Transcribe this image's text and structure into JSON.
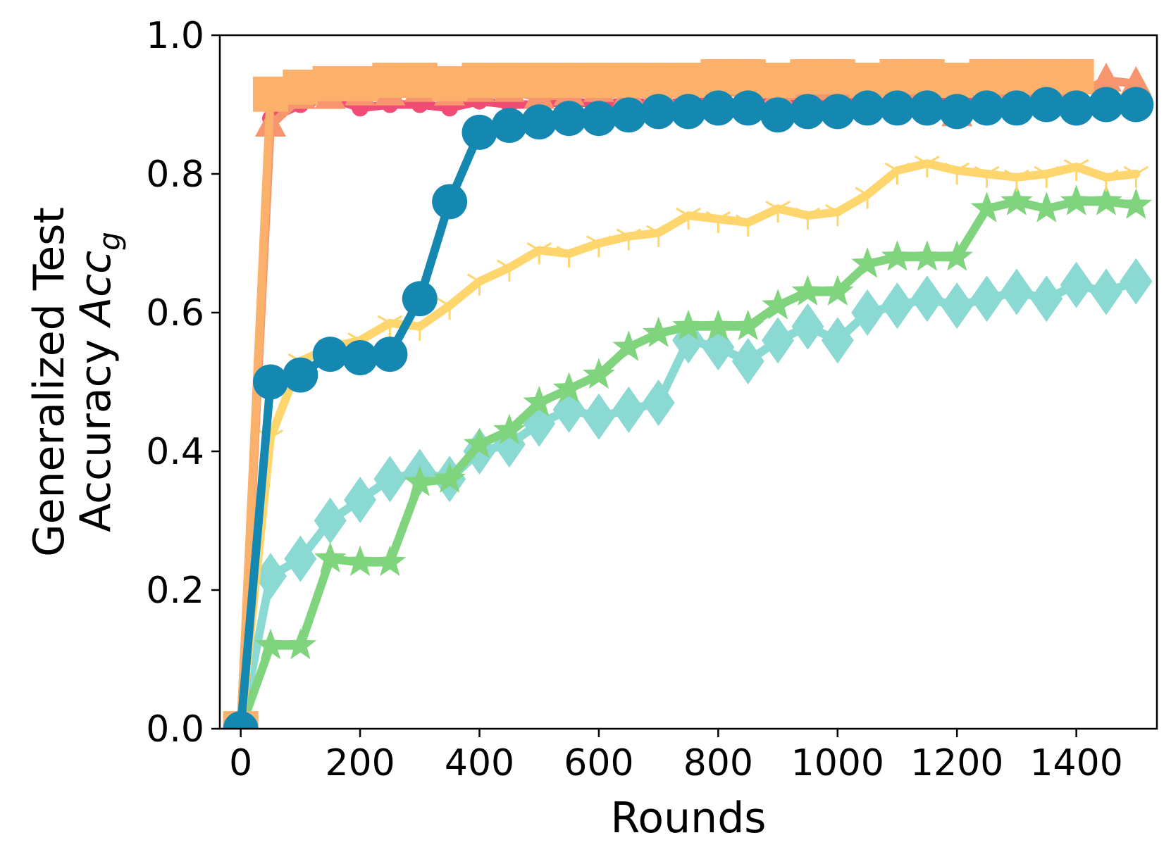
{
  "chart_data": {
    "type": "line",
    "title": "",
    "xlabel": "Rounds",
    "ylabel_line1": "Generalized Test",
    "ylabel_line2_prefix": "Accuracy ",
    "ylabel_line2_math": "Acc",
    "ylabel_line2_sub": "g",
    "xlim": [
      -35,
      1535
    ],
    "ylim": [
      0.0,
      1.0
    ],
    "xticks": [
      0,
      200,
      400,
      600,
      800,
      1000,
      1200,
      1400
    ],
    "xtick_labels": [
      "0",
      "200",
      "400",
      "600",
      "800",
      "1000",
      "1200",
      "1400"
    ],
    "yticks": [
      0.0,
      0.2,
      0.4,
      0.6,
      0.8,
      1.0
    ],
    "ytick_labels": [
      "0.0",
      "0.2",
      "0.4",
      "0.6",
      "0.8",
      "1.0"
    ],
    "grid": false,
    "series": [
      {
        "color": "#8AD9D2",
        "marker": "diamond",
        "x": [
          0,
          50,
          100,
          150,
          200,
          250,
          300,
          350,
          400,
          450,
          500,
          550,
          600,
          650,
          700,
          750,
          800,
          850,
          900,
          950,
          1000,
          1050,
          1100,
          1150,
          1200,
          1250,
          1300,
          1350,
          1400,
          1450,
          1500
        ],
        "values": [
          0.0,
          0.22,
          0.245,
          0.3,
          0.33,
          0.36,
          0.37,
          0.36,
          0.4,
          0.41,
          0.44,
          0.46,
          0.45,
          0.46,
          0.47,
          0.56,
          0.55,
          0.53,
          0.56,
          0.58,
          0.56,
          0.6,
          0.61,
          0.62,
          0.61,
          0.62,
          0.63,
          0.62,
          0.64,
          0.63,
          0.645
        ]
      },
      {
        "color": "#80D47E",
        "marker": "star",
        "x": [
          0,
          50,
          100,
          150,
          200,
          250,
          300,
          350,
          400,
          450,
          500,
          550,
          600,
          650,
          700,
          750,
          800,
          850,
          900,
          950,
          1000,
          1050,
          1100,
          1150,
          1200,
          1250,
          1300,
          1350,
          1400,
          1450,
          1500
        ],
        "values": [
          0.0,
          0.12,
          0.12,
          0.245,
          0.24,
          0.24,
          0.355,
          0.36,
          0.41,
          0.43,
          0.47,
          0.49,
          0.51,
          0.55,
          0.57,
          0.58,
          0.58,
          0.58,
          0.61,
          0.63,
          0.63,
          0.67,
          0.68,
          0.68,
          0.68,
          0.75,
          0.76,
          0.75,
          0.76,
          0.76,
          0.755
        ]
      },
      {
        "color": "#FFD56E",
        "marker": "tri_down",
        "x": [
          0,
          50,
          100,
          150,
          200,
          250,
          300,
          350,
          400,
          450,
          500,
          550,
          600,
          650,
          700,
          750,
          800,
          850,
          900,
          950,
          1000,
          1050,
          1100,
          1150,
          1200,
          1250,
          1300,
          1350,
          1400,
          1450,
          1500
        ],
        "values": [
          0.0,
          0.42,
          0.53,
          0.55,
          0.56,
          0.585,
          0.58,
          0.61,
          0.645,
          0.665,
          0.69,
          0.685,
          0.7,
          0.71,
          0.715,
          0.74,
          0.735,
          0.73,
          0.75,
          0.74,
          0.745,
          0.77,
          0.805,
          0.815,
          0.805,
          0.8,
          0.795,
          0.8,
          0.81,
          0.795,
          0.8
        ]
      },
      {
        "color": "#F04C75",
        "marker": "circle_small",
        "x": [
          0,
          50,
          100,
          150,
          200,
          250,
          300,
          350,
          400,
          450,
          500,
          550,
          600,
          650,
          700,
          750,
          800,
          850,
          900,
          950,
          1000,
          1050,
          1100,
          1150,
          1200,
          1250,
          1300,
          1350,
          1400,
          1450,
          1500
        ],
        "values": [
          0.0,
          0.88,
          0.9,
          0.91,
          0.895,
          0.9,
          0.9,
          0.895,
          0.905,
          0.9,
          0.9,
          0.905,
          0.9,
          0.905,
          0.9,
          0.905,
          0.905,
          0.9,
          0.905,
          0.9,
          0.905,
          0.905,
          0.9,
          0.91,
          0.905,
          0.905,
          0.9,
          0.905,
          0.895,
          0.9,
          0.905
        ]
      },
      {
        "color": "#F7956E",
        "marker": "triangle_up",
        "x": [
          0,
          50,
          100,
          150,
          200,
          250,
          300,
          350,
          400,
          450,
          500,
          550,
          600,
          650,
          700,
          750,
          800,
          850,
          900,
          950,
          1000,
          1050,
          1100,
          1150,
          1200,
          1250,
          1300,
          1350,
          1400,
          1450,
          1500
        ],
        "values": [
          0.0,
          0.87,
          0.91,
          0.91,
          0.915,
          0.915,
          0.92,
          0.915,
          0.92,
          0.92,
          0.91,
          0.915,
          0.92,
          0.915,
          0.92,
          0.915,
          0.92,
          0.915,
          0.915,
          0.91,
          0.915,
          0.915,
          0.91,
          0.91,
          0.885,
          0.91,
          0.915,
          0.92,
          0.915,
          0.935,
          0.93
        ]
      },
      {
        "color": "#FBB06B",
        "marker": "square",
        "x": [
          0,
          50,
          100,
          150,
          200,
          250,
          300,
          350,
          400,
          450,
          500,
          550,
          600,
          650,
          700,
          750,
          800,
          850,
          900,
          950,
          1000,
          1050,
          1100,
          1150,
          1200,
          1250,
          1300,
          1350,
          1400
        ],
        "values": [
          0.0,
          0.915,
          0.925,
          0.93,
          0.93,
          0.935,
          0.935,
          0.93,
          0.935,
          0.935,
          0.935,
          0.935,
          0.935,
          0.935,
          0.935,
          0.935,
          0.94,
          0.94,
          0.935,
          0.94,
          0.94,
          0.935,
          0.94,
          0.94,
          0.935,
          0.94,
          0.94,
          0.94,
          0.94
        ]
      },
      {
        "color": "#1588B2",
        "marker": "circle_large",
        "x": [
          0,
          50,
          100,
          150,
          200,
          250,
          300,
          350,
          400,
          450,
          500,
          550,
          600,
          650,
          700,
          750,
          800,
          850,
          900,
          950,
          1000,
          1050,
          1100,
          1150,
          1200,
          1250,
          1300,
          1350,
          1400,
          1450,
          1500
        ],
        "values": [
          0.0,
          0.5,
          0.51,
          0.54,
          0.535,
          0.54,
          0.62,
          0.76,
          0.86,
          0.87,
          0.875,
          0.88,
          0.88,
          0.885,
          0.89,
          0.89,
          0.895,
          0.895,
          0.885,
          0.89,
          0.89,
          0.895,
          0.895,
          0.895,
          0.89,
          0.895,
          0.895,
          0.9,
          0.895,
          0.9,
          0.9
        ]
      }
    ]
  }
}
